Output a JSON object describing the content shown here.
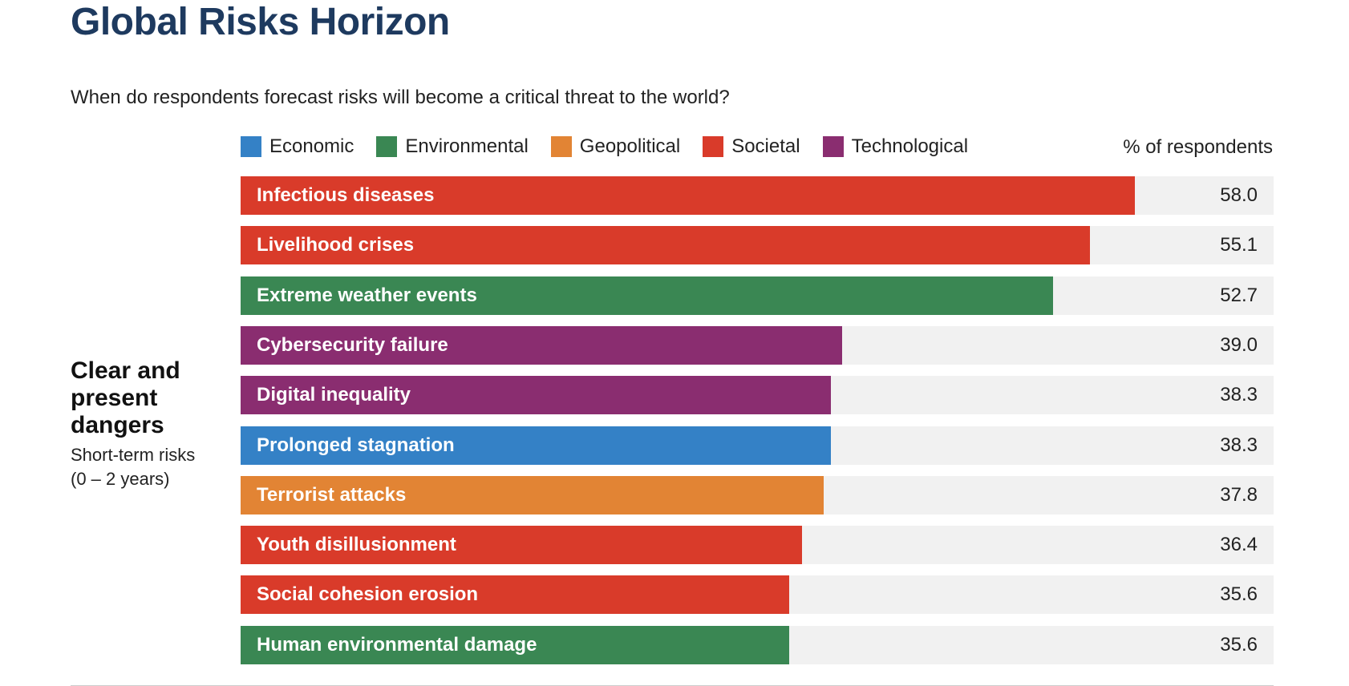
{
  "title": "Global Risks Horizon",
  "subtitle": "When do respondents forecast risks will become a critical threat to the world?",
  "units_label": "% of respondents",
  "side": {
    "heading": [
      "Clear and",
      "present",
      "dangers"
    ],
    "sub": [
      "Short-term risks",
      "(0 – 2 years)"
    ]
  },
  "legend": [
    {
      "label": "Economic",
      "color": "#3481c6"
    },
    {
      "label": "Environmental",
      "color": "#3a8753"
    },
    {
      "label": "Geopolitical",
      "color": "#e28434"
    },
    {
      "label": "Societal",
      "color": "#d93b2a"
    },
    {
      "label": "Technological",
      "color": "#8a2d70"
    }
  ],
  "chart_data": {
    "type": "bar",
    "orientation": "horizontal",
    "title": "Global Risks Horizon",
    "xlabel": "% of respondents",
    "ylabel": "",
    "xlim": [
      0,
      67
    ],
    "categories": [
      "Infectious diseases",
      "Livelihood crises",
      "Extreme weather events",
      "Cybersecurity failure",
      "Digital inequality",
      "Prolonged stagnation",
      "Terrorist attacks",
      "Youth disillusionment",
      "Social cohesion erosion",
      "Human environmental damage"
    ],
    "values": [
      58.0,
      55.1,
      52.7,
      39.0,
      38.3,
      38.3,
      37.8,
      36.4,
      35.6,
      35.6
    ],
    "value_labels": [
      "58.0",
      "55.1",
      "52.7",
      "39.0",
      "38.3",
      "38.3",
      "37.8",
      "36.4",
      "35.6",
      "35.6"
    ],
    "groups": [
      "Societal",
      "Societal",
      "Environmental",
      "Technological",
      "Technological",
      "Economic",
      "Geopolitical",
      "Societal",
      "Societal",
      "Environmental"
    ]
  }
}
